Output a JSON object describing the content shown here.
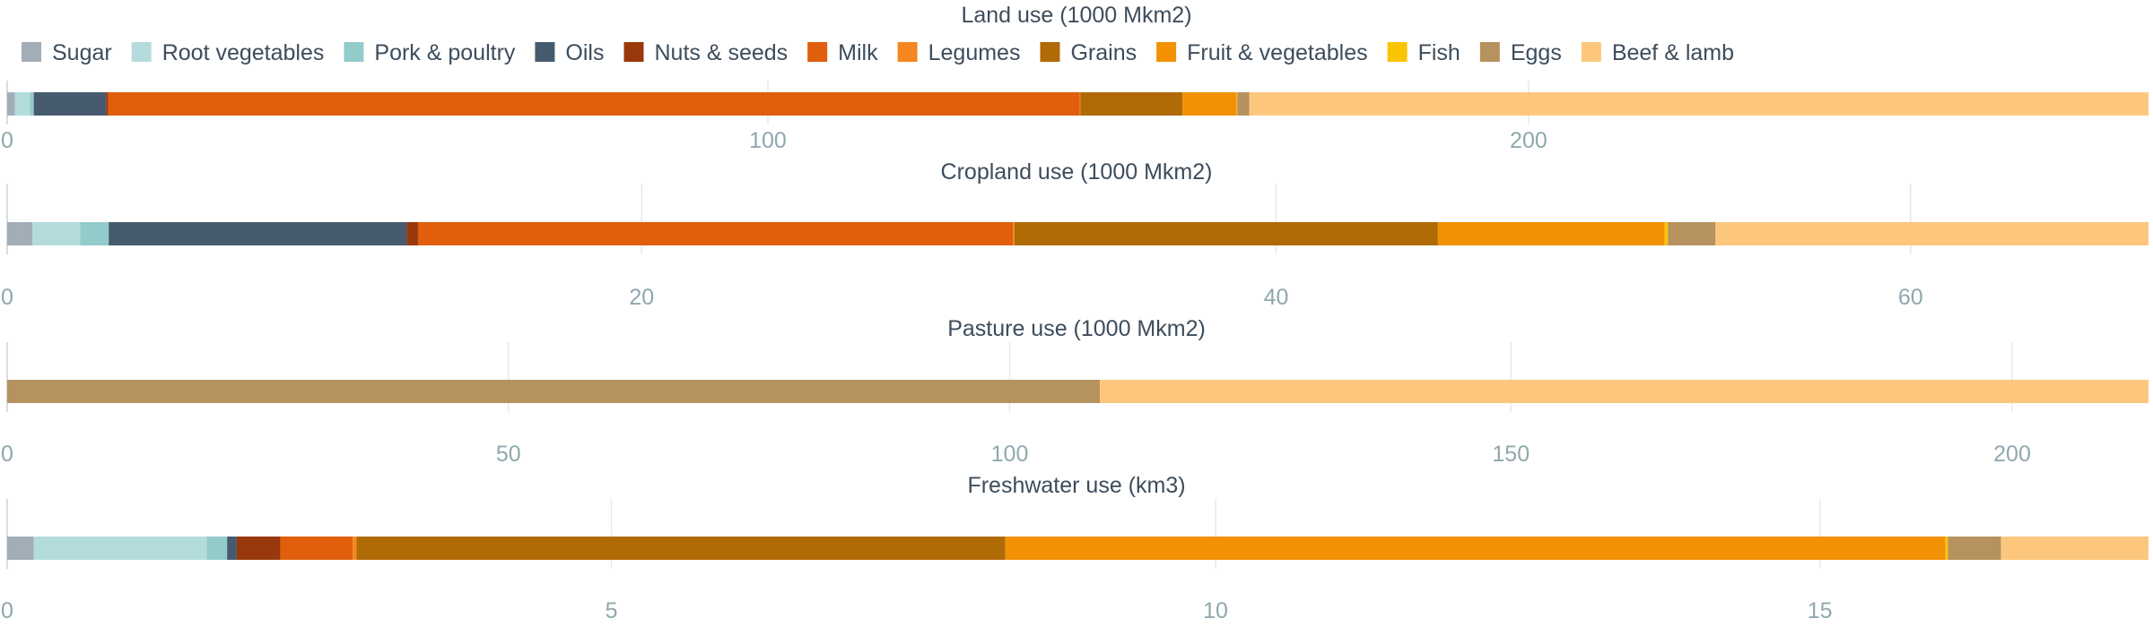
{
  "colors": {
    "Sugar": "#a3adb8",
    "Root vegetables": "#b4dcdc",
    "Pork & poultry": "#93cbcb",
    "Oils": "#475b6e",
    "Nuts & seeds": "#99380a",
    "Milk": "#e05e0c",
    "Legumes": "#f58720",
    "Grains": "#b06a06",
    "Fruit & vegetables": "#f29104",
    "Fish": "#f9c400",
    "Eggs": "#b6925e",
    "Beef & lamb": "#fcc77d"
  },
  "chart_data": {
    "type": "bar",
    "orientation": "horizontal",
    "stacked": true,
    "legend": {
      "position": "top",
      "entries": [
        "Sugar",
        "Root vegetables",
        "Pork & poultry",
        "Oils",
        "Nuts & seeds",
        "Milk",
        "Legumes",
        "Grains",
        "Fruit & vegetables",
        "Fish",
        "Eggs",
        "Beef & lamb"
      ]
    },
    "grid": true,
    "panels": [
      {
        "title": "Land use (1000 Mkm2)",
        "xlim": [
          0,
          281.5
        ],
        "ticks": [
          0,
          100,
          200
        ],
        "segments": [
          {
            "name": "Sugar",
            "value": 1.0
          },
          {
            "name": "Root vegetables",
            "value": 2.0
          },
          {
            "name": "Pork & poultry",
            "value": 0.5
          },
          {
            "name": "Oils",
            "value": 9.5
          },
          {
            "name": "Nuts & seeds",
            "value": 0.3
          },
          {
            "name": "Milk",
            "value": 127.7
          },
          {
            "name": "Legumes",
            "value": 0.1
          },
          {
            "name": "Grains",
            "value": 13.4
          },
          {
            "name": "Fruit & vegetables",
            "value": 7.1
          },
          {
            "name": "Fish",
            "value": 0.1
          },
          {
            "name": "Eggs",
            "value": 1.6
          },
          {
            "name": "Beef & lamb",
            "value": 118.2
          }
        ]
      },
      {
        "title": "Cropland use (1000 Mkm2)",
        "xlim": [
          0,
          67.5
        ],
        "ticks": [
          0,
          20,
          40,
          60
        ],
        "segments": [
          {
            "name": "Sugar",
            "value": 0.8
          },
          {
            "name": "Root vegetables",
            "value": 1.5
          },
          {
            "name": "Pork & poultry",
            "value": 0.9
          },
          {
            "name": "Oils",
            "value": 9.4
          },
          {
            "name": "Nuts & seeds",
            "value": 0.35
          },
          {
            "name": "Milk",
            "value": 18.75
          },
          {
            "name": "Legumes",
            "value": 0.05
          },
          {
            "name": "Grains",
            "value": 13.35
          },
          {
            "name": "Fruit & vegetables",
            "value": 7.15
          },
          {
            "name": "Fish",
            "value": 0.1
          },
          {
            "name": "Eggs",
            "value": 1.5
          },
          {
            "name": "Beef & lamb",
            "value": 13.65
          }
        ]
      },
      {
        "title": "Pasture use (1000 Mkm2)",
        "xlim": [
          0,
          213.6
        ],
        "ticks": [
          0,
          50,
          100,
          150,
          200
        ],
        "segments": [
          {
            "name": "Eggs",
            "value": 109.0
          },
          {
            "name": "Beef & lamb",
            "value": 104.6
          }
        ]
      },
      {
        "title": "Freshwater use (km3)",
        "xlim": [
          0,
          17.72
        ],
        "ticks": [
          0,
          5,
          10,
          15
        ],
        "segments": [
          {
            "name": "Sugar",
            "value": 0.22
          },
          {
            "name": "Root vegetables",
            "value": 1.43
          },
          {
            "name": "Pork & poultry",
            "value": 0.17
          },
          {
            "name": "Oils",
            "value": 0.08
          },
          {
            "name": "Nuts & seeds",
            "value": 0.36
          },
          {
            "name": "Milk",
            "value": 0.6
          },
          {
            "name": "Legumes",
            "value": 0.03
          },
          {
            "name": "Grains",
            "value": 5.37
          },
          {
            "name": "Fruit & vegetables",
            "value": 7.78
          },
          {
            "name": "Fish",
            "value": 0.02
          },
          {
            "name": "Eggs",
            "value": 0.44
          },
          {
            "name": "Beef & lamb",
            "value": 1.22
          }
        ]
      }
    ]
  }
}
